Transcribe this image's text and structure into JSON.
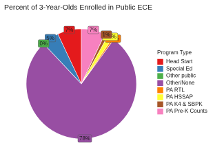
{
  "chart_data": {
    "type": "pie",
    "title": "Percent of 3-Year-Olds Enrolled in Public ECE",
    "legend_title": "Program Type",
    "categories": [
      "Head Start",
      "Special Ed",
      "Other public",
      "Other/None",
      "PA RTL",
      "PA HSSAP",
      "PA K4 & SBPK",
      "PA Pre-K Counts"
    ],
    "values": [
      7,
      5,
      0,
      78,
      0.5,
      1.5,
      1,
      7
    ],
    "value_labels": [
      "7%",
      "5%",
      "0%",
      "78%",
      "0.5%",
      "1.5%",
      "1%",
      "7%"
    ],
    "colors": [
      "#e41a1c",
      "#377eb8",
      "#4daf4a",
      "#984ea3",
      "#ff7f00",
      "#ffff33",
      "#a65628",
      "#f781bf"
    ],
    "direction": "counterclockwise"
  }
}
